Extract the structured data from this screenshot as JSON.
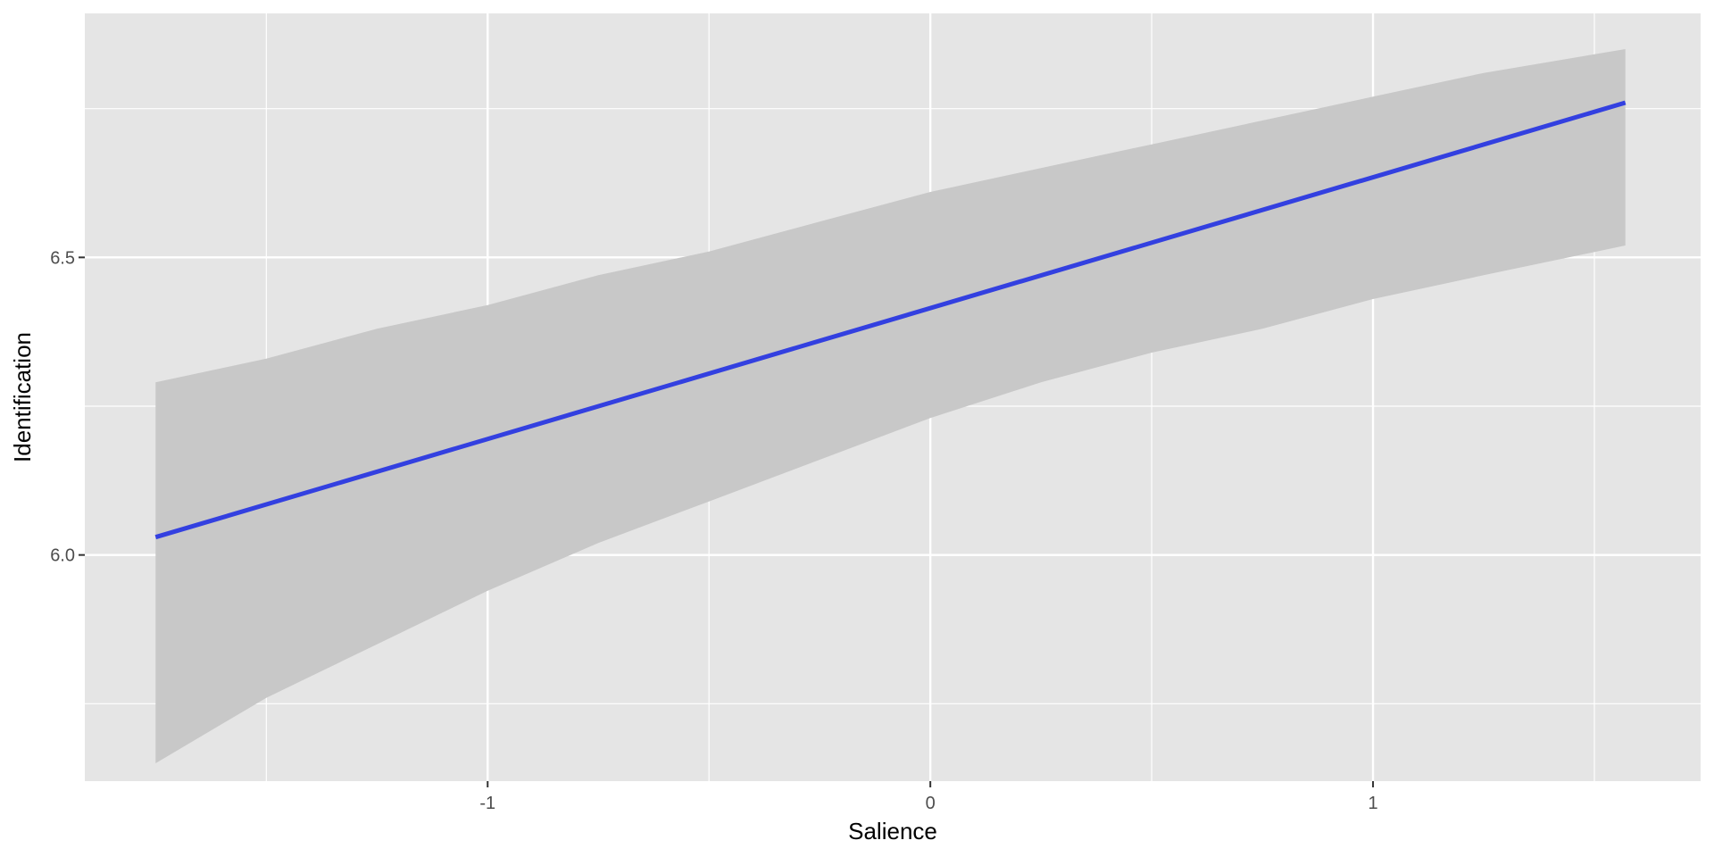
{
  "chart_data": {
    "type": "line",
    "title": "",
    "xlabel": "Salience",
    "ylabel": "Identification",
    "xlim": [
      -1.91,
      1.74
    ],
    "ylim": [
      5.62,
      6.91
    ],
    "x_ticks": [
      {
        "value": -1,
        "label": "-1"
      },
      {
        "value": 0,
        "label": "0"
      },
      {
        "value": 1,
        "label": "1"
      }
    ],
    "y_ticks": [
      {
        "value": 6.0,
        "label": "6.0"
      },
      {
        "value": 6.5,
        "label": "6.5"
      }
    ],
    "x_minor_grid": [
      -1.5,
      -0.5,
      0.5,
      1.5
    ],
    "y_minor_grid": [
      5.75,
      6.25,
      6.75
    ],
    "grid": true,
    "legend": "none",
    "series": [
      {
        "x": [
          -1.75,
          1.57
        ],
        "y": [
          6.03,
          6.76
        ],
        "color": "#3340e0"
      }
    ],
    "ribbon": {
      "color": "#c8c8c8",
      "x": [
        -1.75,
        -1.5,
        -1.25,
        -1.0,
        -0.75,
        -0.5,
        -0.25,
        0.0,
        0.25,
        0.5,
        0.75,
        1.0,
        1.25,
        1.57
      ],
      "lower": [
        5.65,
        5.76,
        5.85,
        5.94,
        6.02,
        6.09,
        6.16,
        6.23,
        6.29,
        6.34,
        6.38,
        6.43,
        6.47,
        6.52
      ],
      "upper": [
        6.29,
        6.33,
        6.38,
        6.42,
        6.47,
        6.51,
        6.56,
        6.61,
        6.65,
        6.69,
        6.73,
        6.77,
        6.81,
        6.85
      ]
    },
    "colors": {
      "panel": "#e5e5e5",
      "grid": "#ffffff",
      "axis_tick": "#333333"
    }
  }
}
